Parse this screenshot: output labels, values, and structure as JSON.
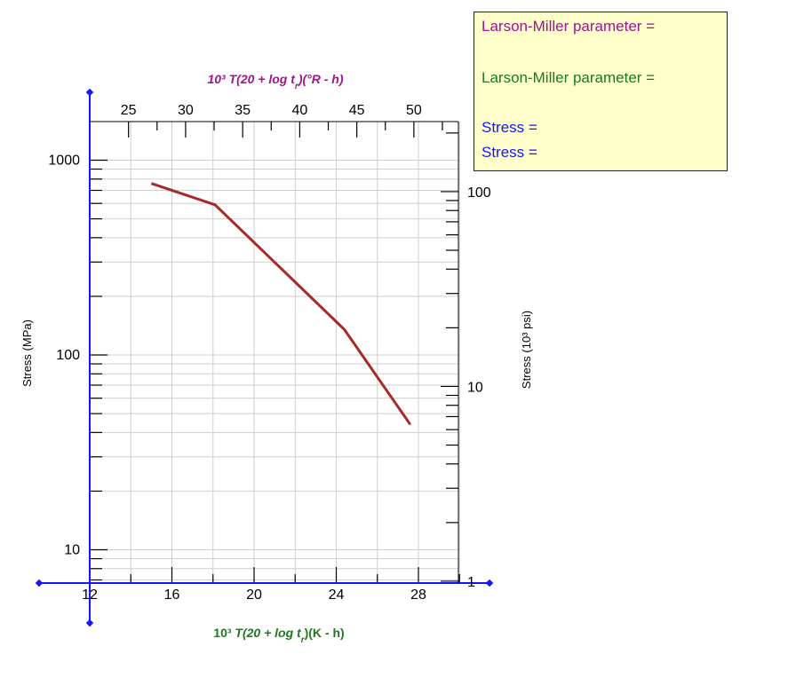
{
  "readout": {
    "lm_label_1": "Larson-Miller parameter =",
    "lm_label_1_color": "#a0148c",
    "lm_label_2": "Larson-Miller parameter =",
    "lm_label_2_color": "#1e7a1e",
    "stress_label_1": "Stress =",
    "stress_label_2": "Stress =",
    "stress_color": "#1515ff",
    "background": "#ffffcc"
  },
  "chart_data": {
    "type": "line",
    "title": "",
    "x_bottom": {
      "label_prefix": "10³ ",
      "label_main": "T(20 + log t",
      "label_sub": "r",
      "label_suffix": ")(K - h)",
      "color": "#1e7a1e",
      "range": [
        12,
        30
      ],
      "ticks": [
        12,
        16,
        20,
        24,
        28
      ],
      "tick_labels": [
        "12",
        "16",
        "20",
        "24",
        "28"
      ]
    },
    "x_top": {
      "label_prefix": "10³ ",
      "label_main": "T(20 + log t",
      "label_sub": "r",
      "label_suffix": ")(°R - h)",
      "color": "#a0148c",
      "ticks": [
        25,
        30,
        35,
        40,
        45,
        50
      ],
      "tick_labels": [
        "25",
        "30",
        "35",
        "40",
        "45",
        "50"
      ]
    },
    "y_left": {
      "label": "Stress (MPa)",
      "scale": "log",
      "range": [
        6.7,
        1500
      ],
      "ticks": [
        10,
        100,
        1000
      ],
      "tick_labels": [
        "10",
        "100",
        "1000"
      ]
    },
    "y_right": {
      "label": "Stress (10³ psi)",
      "scale": "log",
      "ticks": [
        1,
        10,
        100
      ],
      "tick_labels": [
        "1",
        "10",
        "100"
      ]
    },
    "grid": true,
    "axis_color": "#1515ff",
    "series": [
      {
        "color": "#a52a2a",
        "x": [
          15.0,
          18.1,
          24.4,
          27.6
        ],
        "y": [
          760,
          590,
          135,
          44
        ]
      }
    ]
  }
}
